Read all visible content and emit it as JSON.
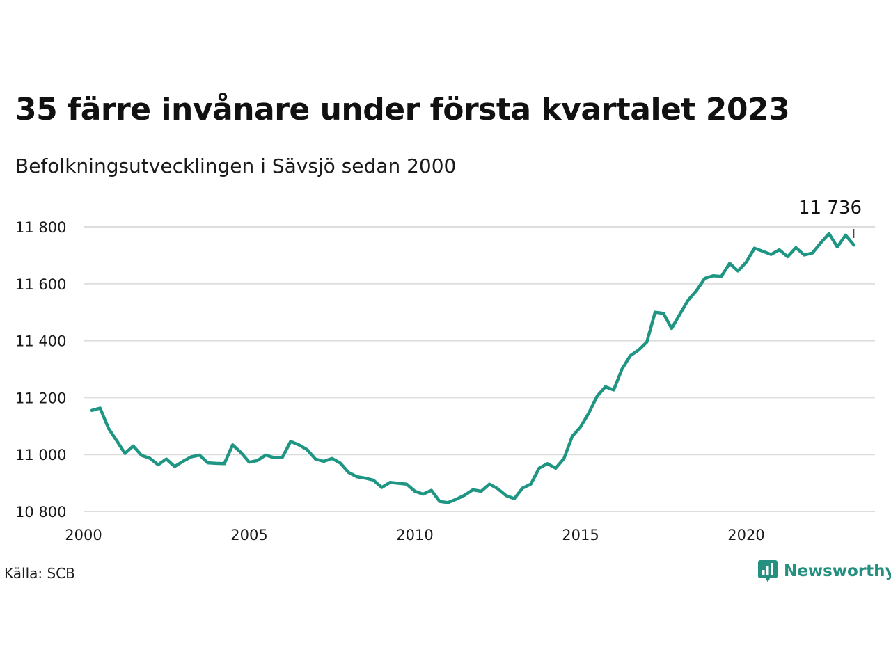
{
  "title": "35 färre invånare under första kvartalet 2023",
  "subtitle": "Befolkningsutvecklingen i Sävsjö sedan 2000",
  "source": "Källa: SCB",
  "brand": {
    "name": "Newsworthy",
    "color": "#25907f",
    "icon": "bar-chart-speech-bubble-icon"
  },
  "colors": {
    "line": "#1f9583",
    "grid": "#dddddd"
  },
  "chart_data": {
    "type": "line",
    "title": "35 färre invånare under första kvartalet 2023",
    "subtitle": "Befolkningsutvecklingen i Sävsjö sedan 2000",
    "xlabel": "",
    "ylabel": "",
    "xlim": [
      2000,
      2024
    ],
    "ylim": [
      10800,
      11800
    ],
    "xticks": [
      2000,
      2005,
      2010,
      2015,
      2020
    ],
    "xtick_labels": [
      "2000",
      "2005",
      "2010",
      "2015",
      "2020"
    ],
    "yticks": [
      10800,
      11000,
      11200,
      11400,
      11600,
      11800
    ],
    "ytick_labels": [
      "10 800",
      "11 000",
      "11 200",
      "11 400",
      "11 600",
      "11 800"
    ],
    "grid": true,
    "end_label": "11 736",
    "series": [
      {
        "x": [
          2000.25,
          2000.5,
          2000.75,
          2001.0,
          2001.25,
          2001.5,
          2001.75,
          2002.0,
          2002.25,
          2002.5,
          2002.75,
          2003.0,
          2003.25,
          2003.5,
          2003.75,
          2004.0,
          2004.25,
          2004.5,
          2004.75,
          2005.0,
          2005.25,
          2005.5,
          2005.75,
          2006.0,
          2006.25,
          2006.5,
          2006.75,
          2007.0,
          2007.25,
          2007.5,
          2007.75,
          2008.0,
          2008.25,
          2008.5,
          2008.75,
          2009.0,
          2009.25,
          2009.5,
          2009.75,
          2010.0,
          2010.25,
          2010.5,
          2010.75,
          2011.0,
          2011.25,
          2011.5,
          2011.75,
          2012.0,
          2012.25,
          2012.5,
          2012.75,
          2013.0,
          2013.25,
          2013.5,
          2013.75,
          2014.0,
          2014.25,
          2014.5,
          2014.75,
          2015.0,
          2015.25,
          2015.5,
          2015.75,
          2016.0,
          2016.25,
          2016.5,
          2016.75,
          2017.0,
          2017.25,
          2017.5,
          2017.75,
          2018.0,
          2018.25,
          2018.5,
          2018.75,
          2019.0,
          2019.25,
          2019.5,
          2019.75,
          2020.0,
          2020.25,
          2020.5,
          2020.75,
          2021.0,
          2021.25,
          2021.5,
          2021.75,
          2022.0,
          2022.25,
          2022.5,
          2022.75,
          2023.0,
          2023.25
        ],
        "y": [
          11155,
          11163,
          11093,
          11049,
          11004,
          11030,
          10997,
          10987,
          10964,
          10984,
          10958,
          10976,
          10992,
          10998,
          10971,
          10969,
          10968,
          11034,
          11007,
          10973,
          10979,
          10998,
          10989,
          10990,
          11046,
          11034,
          11017,
          10984,
          10976,
          10986,
          10970,
          10937,
          10922,
          10917,
          10910,
          10884,
          10902,
          10899,
          10896,
          10871,
          10861,
          10874,
          10835,
          10831,
          10843,
          10857,
          10876,
          10871,
          10896,
          10880,
          10856,
          10845,
          10882,
          10896,
          10952,
          10968,
          10952,
          10986,
          11064,
          11097,
          11146,
          11205,
          11238,
          11227,
          11300,
          11347,
          11367,
          11395,
          11500,
          11496,
          11443,
          11494,
          11543,
          11576,
          11619,
          11628,
          11626,
          11672,
          11645,
          11676,
          11725,
          11714,
          11703,
          11719,
          11695,
          11727,
          11701,
          11708,
          11744,
          11776,
          11729,
          11771,
          11736
        ]
      }
    ]
  }
}
